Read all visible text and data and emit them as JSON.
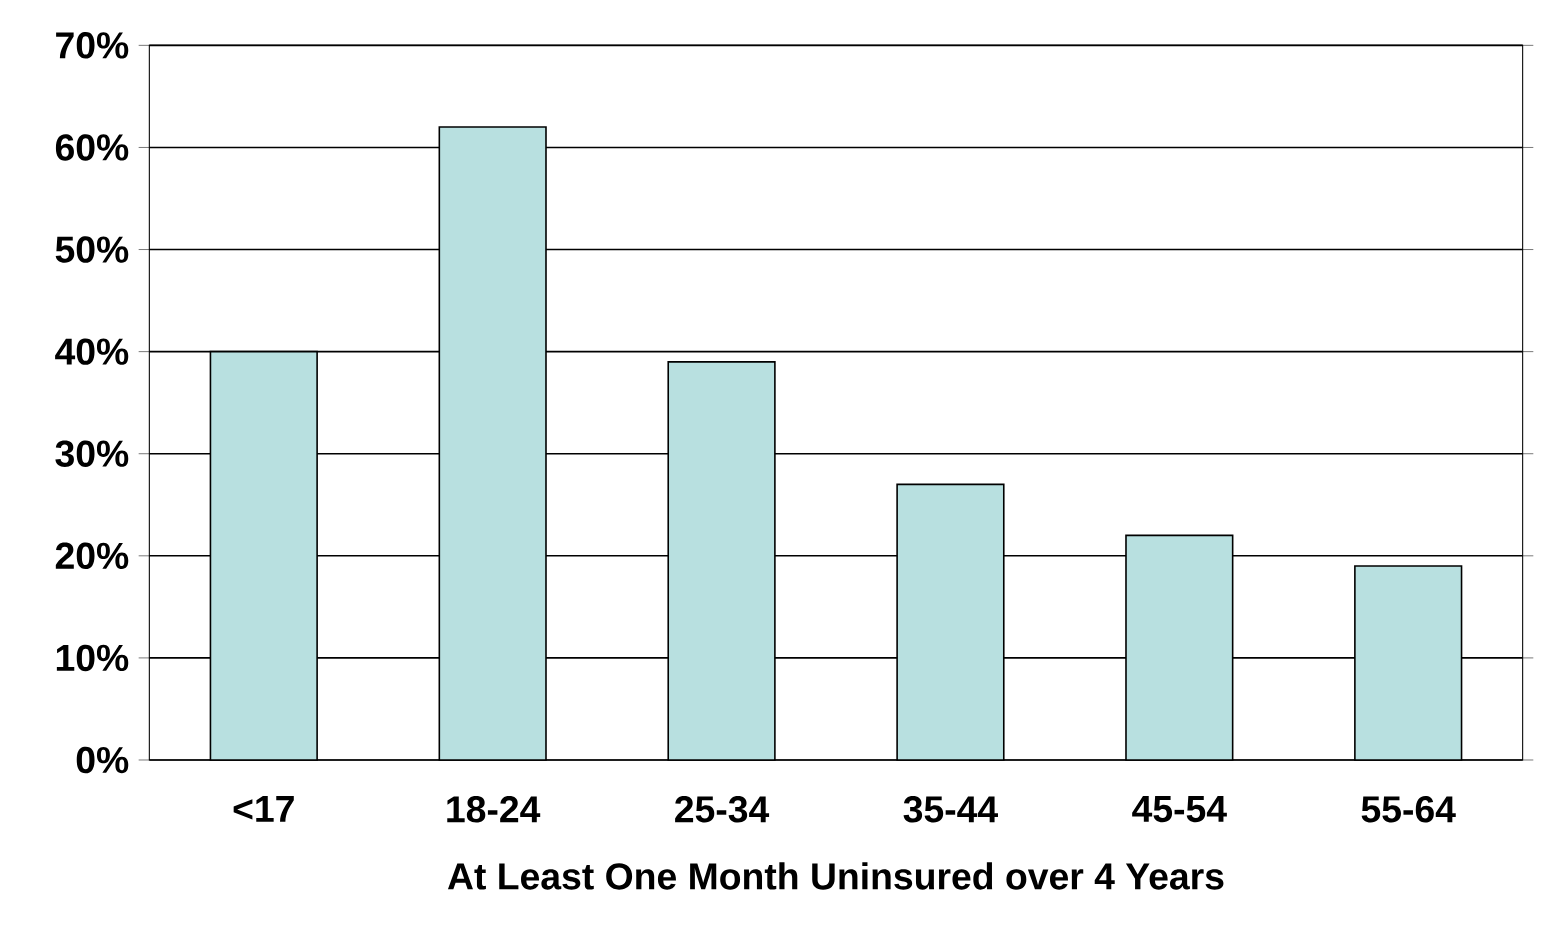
{
  "chart_data": {
    "type": "bar",
    "xlabel": "At Least One Month Uninsured over 4 Years",
    "categories": [
      "<17",
      "18-24",
      "25-34",
      "35-44",
      "45-54",
      "55-64"
    ],
    "values": [
      40,
      62,
      39,
      27,
      22,
      19
    ],
    "color": "#b8e0e0",
    "ylim": [
      0,
      70
    ],
    "yticks": [
      {
        "value": 0,
        "label": "0%"
      },
      {
        "value": 10,
        "label": "10%"
      },
      {
        "value": 20,
        "label": "20%"
      },
      {
        "value": 30,
        "label": "30%"
      },
      {
        "value": 40,
        "label": "40%"
      },
      {
        "value": 50,
        "label": "50%"
      },
      {
        "value": 60,
        "label": "60%"
      },
      {
        "value": 70,
        "label": "70%"
      }
    ],
    "grid": "y"
  }
}
